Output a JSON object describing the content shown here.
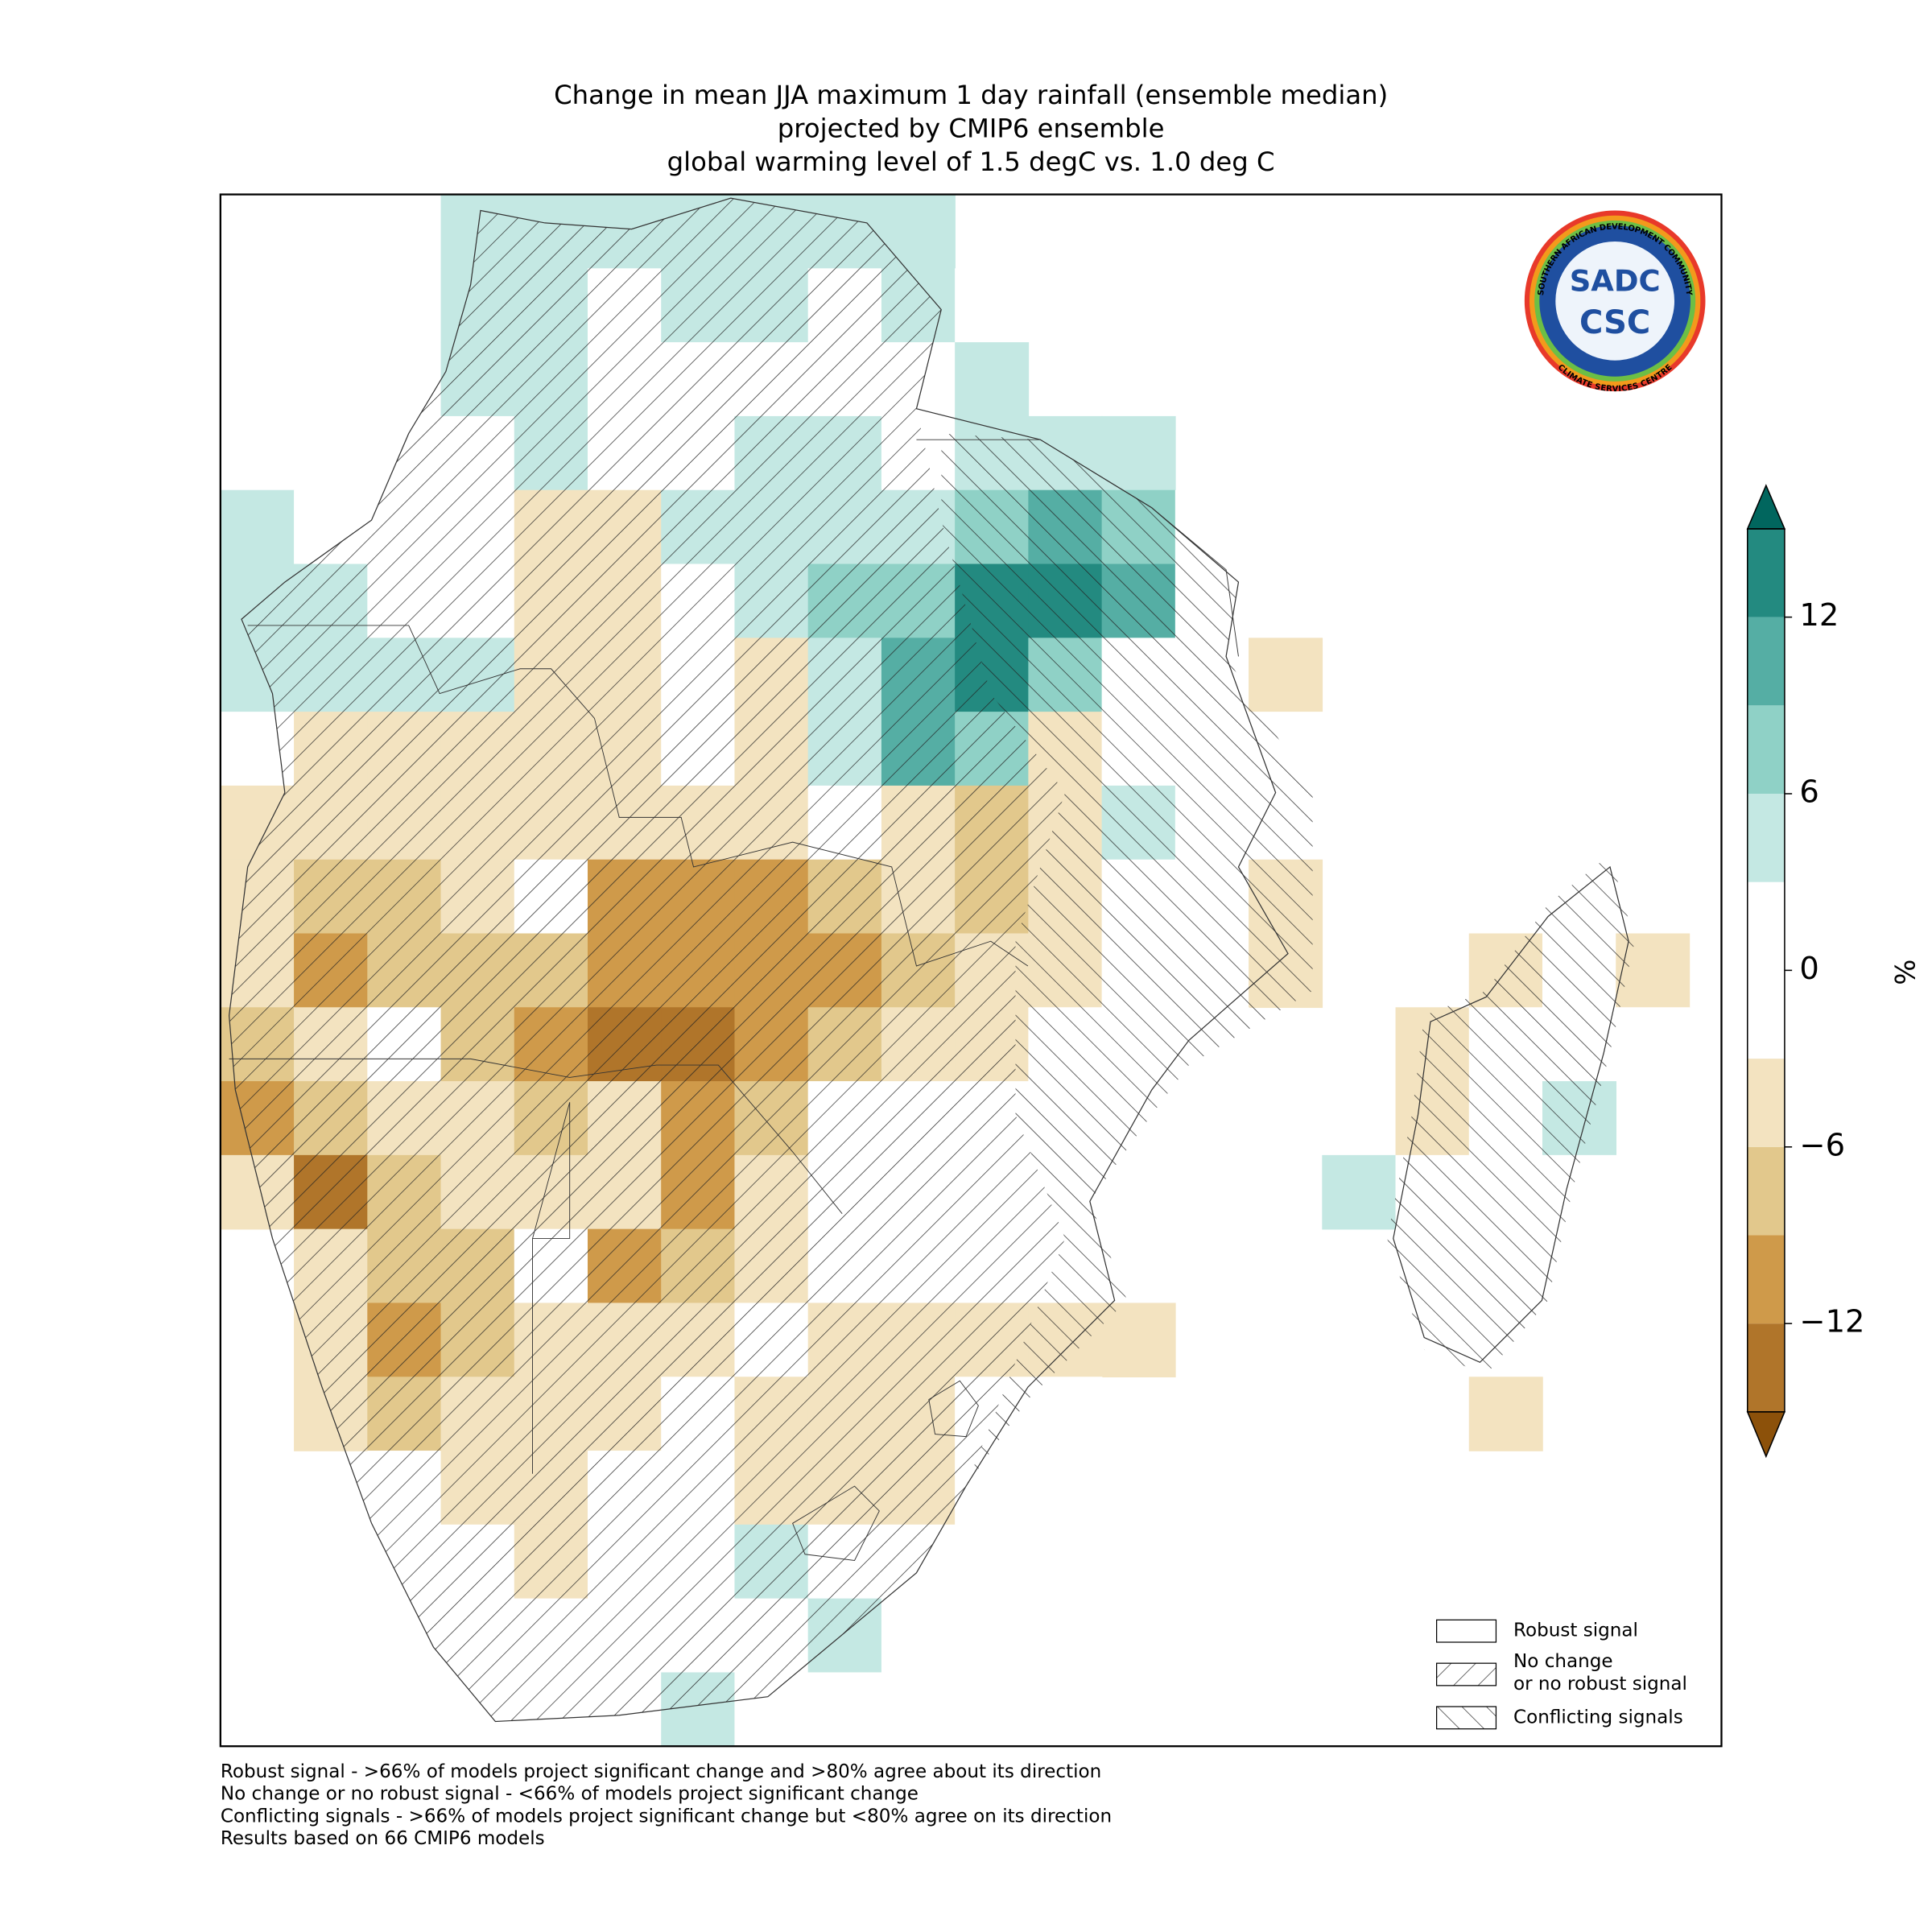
{
  "title_lines": [
    "Change in mean JJA maximum 1 day rainfall (ensemble median)",
    "projected by CMIP6 ensemble",
    "global warming level of 1.5 degC vs. 1.0 deg C"
  ],
  "chart_data": {
    "type": "map",
    "grid": [
      [
        null,
        null,
        null,
        5,
        4,
        4,
        4,
        4,
        4,
        4,
        null,
        null,
        null,
        null,
        null,
        null,
        null,
        null,
        null,
        null
      ],
      [
        null,
        null,
        null,
        4,
        4,
        0,
        4,
        4,
        0,
        4,
        0,
        null,
        null,
        null,
        null,
        null,
        null,
        null,
        null,
        null
      ],
      [
        null,
        null,
        null,
        4,
        4,
        0,
        0,
        0,
        0,
        0,
        4,
        null,
        null,
        null,
        null,
        null,
        null,
        null,
        null,
        null
      ],
      [
        null,
        null,
        0,
        0,
        4,
        0,
        0,
        4,
        4,
        0,
        4,
        4,
        4,
        null,
        null,
        null,
        null,
        null,
        null,
        null
      ],
      [
        5,
        0,
        0,
        0,
        -4,
        -4,
        4,
        5,
        5,
        5,
        8,
        10,
        7,
        0,
        null,
        null,
        null,
        null,
        null,
        null
      ],
      [
        4,
        4,
        0,
        0,
        -4,
        -4,
        0,
        4,
        7,
        7,
        12,
        14,
        10,
        0,
        null,
        null,
        null,
        null,
        null,
        null
      ],
      [
        4,
        5,
        4,
        5,
        -4,
        -6,
        0,
        -4,
        5,
        11,
        12,
        8,
        0,
        0,
        -4,
        null,
        null,
        null,
        null,
        null
      ],
      [
        0,
        -4,
        -4,
        -4,
        -4,
        -6,
        0,
        -4,
        5,
        11,
        7,
        -4,
        0,
        0,
        0,
        null,
        null,
        null,
        null,
        null
      ],
      [
        -4,
        -6,
        -6,
        -6,
        -4,
        -6,
        -4,
        -4,
        0,
        -5,
        -8,
        -6,
        5,
        0,
        0,
        null,
        null,
        null,
        null,
        null
      ],
      [
        -6,
        -8,
        -8,
        -6,
        0,
        -10,
        -12,
        -10,
        -8,
        -6,
        -8,
        -4,
        0,
        0,
        -4,
        null,
        null,
        null,
        null,
        null
      ],
      [
        -6,
        -10,
        -8,
        -8,
        -8,
        -10,
        -12,
        -10,
        -10,
        -8,
        -6,
        -4,
        0,
        0,
        -4,
        null,
        0,
        -4,
        0,
        -4
      ],
      [
        -8,
        -4,
        0,
        -8,
        -12,
        -14,
        -13,
        -10,
        -8,
        -6,
        -4,
        0,
        0,
        0,
        null,
        null,
        -4,
        0,
        0,
        0
      ],
      [
        -10,
        -8,
        -4,
        -4,
        -8,
        -6,
        -10,
        -8,
        0,
        0,
        0,
        0,
        0,
        null,
        null,
        null,
        -4,
        0,
        5,
        null
      ],
      [
        -6,
        -13,
        -8,
        -4,
        -4,
        -6,
        -10,
        -6,
        0,
        0,
        0,
        0,
        null,
        null,
        null,
        5,
        0,
        0,
        0,
        null
      ],
      [
        null,
        -6,
        -8,
        -8,
        0,
        -10,
        -8,
        -4,
        0,
        0,
        0,
        0,
        0,
        null,
        null,
        null,
        0,
        0,
        0,
        null
      ],
      [
        null,
        -6,
        -12,
        -8,
        -4,
        -4,
        -4,
        0,
        -4,
        -4,
        -4,
        -4,
        -4,
        null,
        null,
        null,
        0,
        0,
        null,
        null
      ],
      [
        null,
        -4,
        -8,
        -6,
        -4,
        -4,
        0,
        -4,
        -6,
        -4,
        0,
        0,
        null,
        null,
        null,
        null,
        null,
        -4,
        null,
        null
      ],
      [
        null,
        null,
        0,
        -4,
        -6,
        0,
        0,
        -4,
        -4,
        -4,
        0,
        null,
        null,
        null,
        null,
        null,
        null,
        null,
        null,
        null
      ],
      [
        null,
        null,
        null,
        0,
        -4,
        0,
        0,
        5,
        0,
        0,
        0,
        null,
        null,
        null,
        null,
        null,
        null,
        null,
        null,
        null
      ],
      [
        null,
        null,
        null,
        null,
        0,
        0,
        0,
        0,
        4,
        0,
        null,
        null,
        null,
        null,
        null,
        null,
        null,
        null,
        null,
        null
      ],
      [
        null,
        null,
        null,
        null,
        null,
        0,
        4,
        0,
        0,
        null,
        null,
        null,
        null,
        null,
        null,
        null,
        null,
        null,
        null,
        null
      ]
    ],
    "colorbar": {
      "levels": [
        -15,
        -12,
        -9,
        -6,
        -3,
        3,
        6,
        9,
        12,
        15
      ],
      "colors": [
        "#8c510a",
        "#b0752a",
        "#cf9a4a",
        "#e2c88c",
        "#f3e3c0",
        "#ffffff",
        "#c4e8e3",
        "#8fd1c6",
        "#55aea4",
        "#238a80",
        "#01665e"
      ],
      "ticks": [
        {
          "value": -12,
          "label": "−12"
        },
        {
          "value": -6,
          "label": "−6"
        },
        0,
        6,
        12
      ],
      "label": "%"
    }
  },
  "legend": [
    {
      "lines": [
        "Robust signal"
      ]
    },
    {
      "lines": [
        "No change",
        "or no robust signal"
      ]
    },
    {
      "lines": [
        "Conflicting signals"
      ]
    }
  ],
  "footnotes": [
    "Robust signal - >66% of models project significant change and >80% agree about its direction",
    "No change or no robust signal - <66% of models project significant change",
    "Conflicting signals - >66% of models project significant change but <80% agree on its direction",
    "Results based on 66 CMIP6 models"
  ],
  "logo": {
    "top": "SADC",
    "bottom": "CSC",
    "ring_top": "SOUTHERN AFRICAN DEVELOPMENT COMMUNITY",
    "ring_bottom": "CLIMATE SERVICES CENTRE"
  }
}
